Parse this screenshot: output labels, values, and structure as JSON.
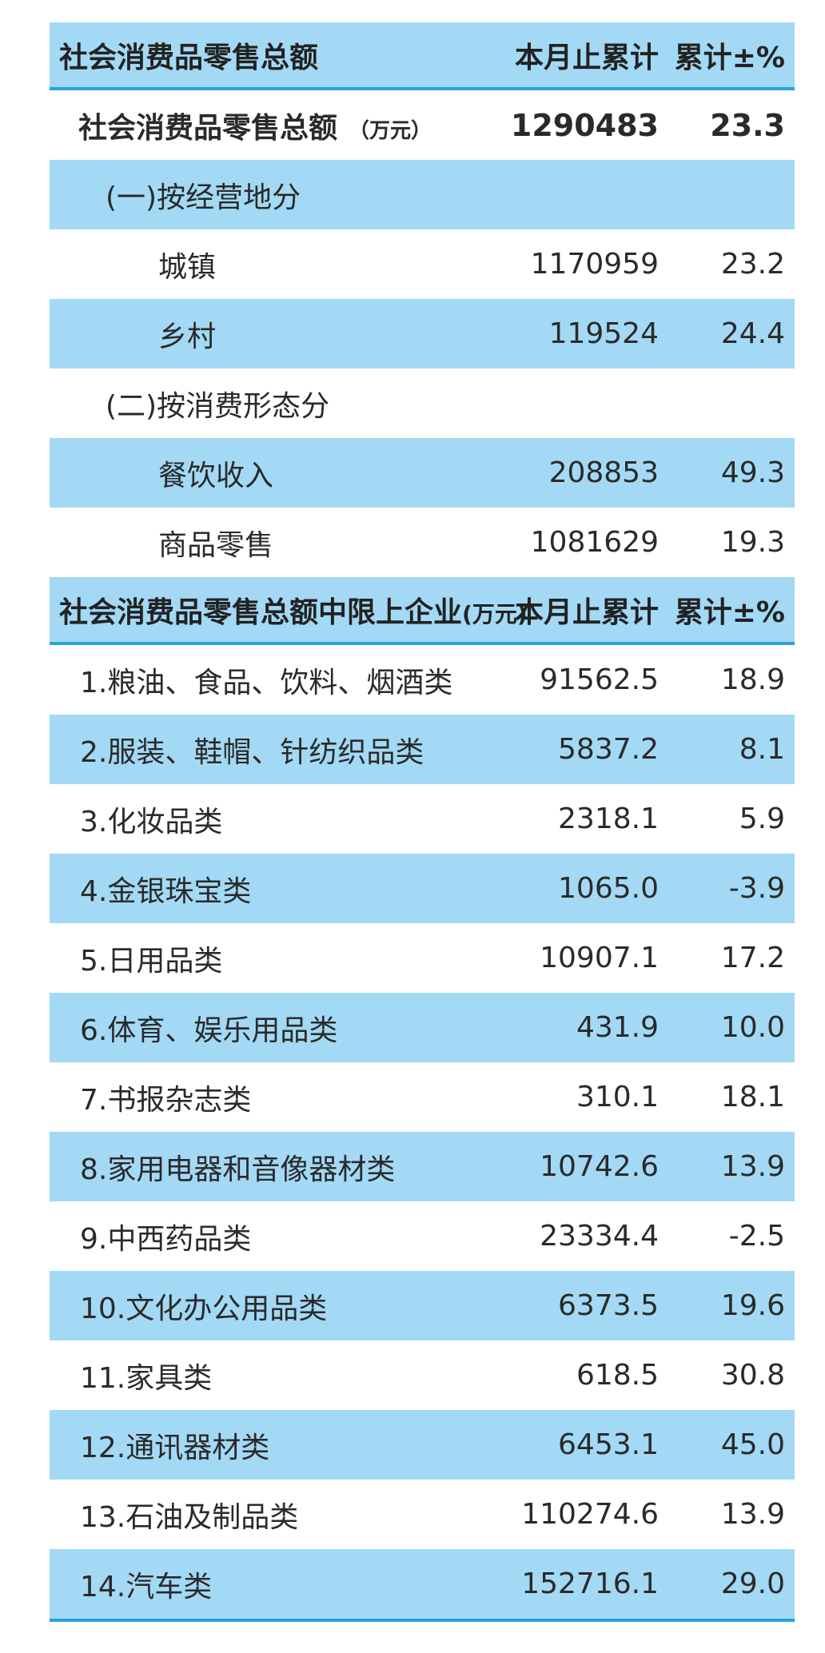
{
  "header1": {
    "title": "社会消费品零售总额",
    "col1": "本月止累计",
    "col2": "累计±%"
  },
  "total": {
    "label": "社会消费品零售总额",
    "unit": "（万元）",
    "value": "1290483",
    "change": "23.3"
  },
  "section1": {
    "label": "(一)按经营地分",
    "rows": [
      {
        "label": "城镇",
        "value": "1170959",
        "change": "23.2"
      },
      {
        "label": "乡村",
        "value": "119524",
        "change": "24.4"
      }
    ]
  },
  "section2": {
    "label": "(二)按消费形态分",
    "rows": [
      {
        "label": "餐饮收入",
        "value": "208853",
        "change": "49.3"
      },
      {
        "label": "商品零售",
        "value": "1081629",
        "change": "19.3"
      }
    ]
  },
  "header2": {
    "title": "社会消费品零售总额中限上企业",
    "unit": "(万元)",
    "col1": "本月止累计",
    "col2": "累计±%"
  },
  "items": [
    {
      "label": "1.粮油、食品、饮料、烟酒类",
      "value": "91562.5",
      "change": "18.9"
    },
    {
      "label": "2.服装、鞋帽、针纺织品类",
      "value": "5837.2",
      "change": "8.1"
    },
    {
      "label": "3.化妆品类",
      "value": "2318.1",
      "change": "5.9"
    },
    {
      "label": "4.金银珠宝类",
      "value": "1065.0",
      "change": "-3.9"
    },
    {
      "label": "5.日用品类",
      "value": "10907.1",
      "change": "17.2"
    },
    {
      "label": "6.体育、娱乐用品类",
      "value": "431.9",
      "change": "10.0"
    },
    {
      "label": "7.书报杂志类",
      "value": "310.1",
      "change": "18.1"
    },
    {
      "label": "8.家用电器和音像器材类",
      "value": "10742.6",
      "change": "13.9"
    },
    {
      "label": "9.中西药品类",
      "value": "23334.4",
      "change": "-2.5"
    },
    {
      "label": "10.文化办公用品类",
      "value": "6373.5",
      "change": "19.6"
    },
    {
      "label": "11.家具类",
      "value": "618.5",
      "change": "30.8"
    },
    {
      "label": "12.通讯器材类",
      "value": "6453.1",
      "change": "45.0"
    },
    {
      "label": "13.石油及制品类",
      "value": "110274.6",
      "change": "13.9"
    },
    {
      "label": "14.汽车类",
      "value": "152716.1",
      "change": "29.0"
    }
  ],
  "colors": {
    "band": "#a3d9f5",
    "rule": "#2aa3d8"
  }
}
